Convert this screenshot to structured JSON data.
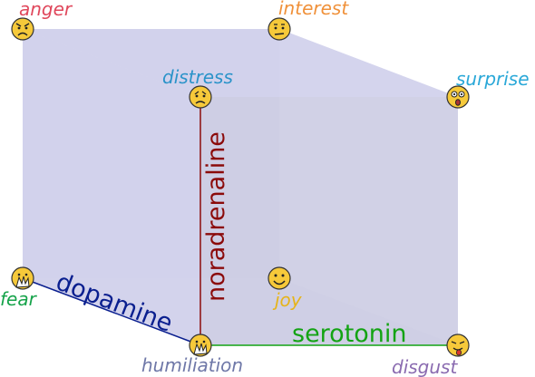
{
  "emotions": {
    "anger": {
      "label": "anger",
      "face": "angry-face",
      "color": "#e0485c"
    },
    "interest": {
      "label": "interest",
      "face": "neutral-face",
      "color": "#f0913a"
    },
    "distress": {
      "label": "distress",
      "face": "sad-face",
      "color": "#2a93c9"
    },
    "surprise": {
      "label": "surprise",
      "face": "surprised-face",
      "color": "#2aa8d8"
    },
    "fear": {
      "label": "fear",
      "face": "covering-face",
      "color": "#16a34a"
    },
    "joy": {
      "label": "joy",
      "face": "smiling-face",
      "color": "#e6b41a"
    },
    "humiliation": {
      "label": "humiliation",
      "face": "covering-face",
      "color": "#6f78a8"
    },
    "disgust": {
      "label": "disgust",
      "face": "tongue-out-face",
      "color": "#8a6bb0"
    }
  },
  "axes": {
    "dopamine": {
      "label": "dopamine",
      "color": "#0a1f8f"
    },
    "noradrenaline": {
      "label": "noradrenaline",
      "color": "#8b0a0a"
    },
    "serotonin": {
      "label": "serotonin",
      "color": "#14a314"
    }
  },
  "colors": {
    "cube_face": "#c8c8e8",
    "cube_face_front": "#d0d0ee",
    "face_fill": "#f6c93a"
  }
}
